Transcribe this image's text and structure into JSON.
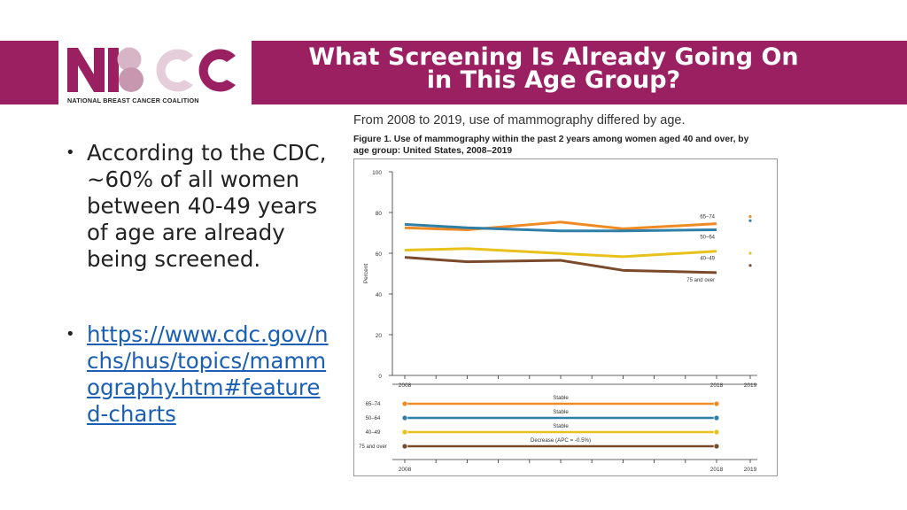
{
  "header": {
    "logo_text": "NBCC",
    "logo_subtitle": "NATIONAL BREAST CANCER COALITION",
    "title_line1": "What Screening Is Already Going On",
    "title_line2": "in This Age Group?",
    "banner_color": "#9b2062"
  },
  "bullets": {
    "text": "According to the CDC, ~60% of all women between 40-49 years of age are already being screened.",
    "link": "https://www.cdc.gov/nchs/hus/topics/mammography.htm#featured-charts"
  },
  "figure": {
    "heading": "From 2008 to 2019, use of mammography differed by age.",
    "caption": "Figure 1. Use of mammography within the past 2 years among women aged 40 and over, by age group: United States, 2008–2019"
  },
  "chart_data": [
    {
      "type": "line",
      "ylabel": "Percent",
      "ylim": [
        0,
        100
      ],
      "yticks": [
        0,
        20,
        40,
        60,
        80,
        100
      ],
      "x": [
        2008,
        2010,
        2013,
        2015,
        2018
      ],
      "x_tick_labels": [
        "2008",
        "2018",
        "2019"
      ],
      "series": [
        {
          "name": "65–74",
          "color": "#f08a24",
          "values": [
            72.5,
            71.5,
            75.3,
            72.0,
            74.5
          ],
          "point_2019": 78.0
        },
        {
          "name": "50–64",
          "color": "#2f7fa8",
          "values": [
            74.2,
            72.5,
            71.0,
            71.0,
            71.5
          ],
          "point_2019": 76.0
        },
        {
          "name": "40–49",
          "color": "#e8c21a",
          "values": [
            61.5,
            62.3,
            59.9,
            58.3,
            61.0
          ],
          "point_2019": 60.0
        },
        {
          "name": "75 and over",
          "color": "#7a4a2a",
          "values": [
            58.0,
            55.8,
            56.5,
            51.6,
            50.5
          ],
          "point_2019": 54.0
        }
      ]
    },
    {
      "type": "trend",
      "x_tick_labels": [
        "2008",
        "2018",
        "2019"
      ],
      "rows": [
        {
          "name": "65–74",
          "color": "#f08a24",
          "label": "Stable"
        },
        {
          "name": "50–64",
          "color": "#2f7fa8",
          "label": "Stable"
        },
        {
          "name": "40–49",
          "color": "#e8c21a",
          "label": "Stable"
        },
        {
          "name": "75 and over",
          "color": "#7a4a2a",
          "label": "Decrease (APC = -0.5%)"
        }
      ]
    }
  ]
}
